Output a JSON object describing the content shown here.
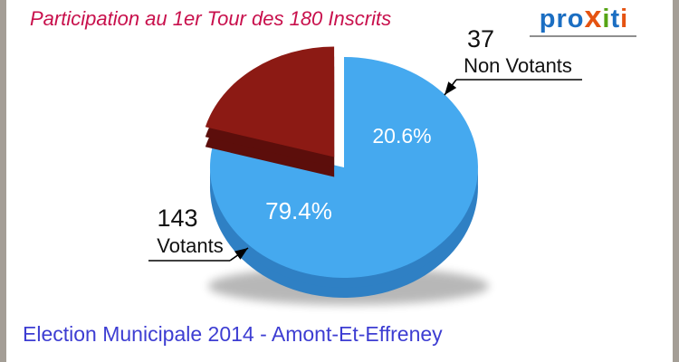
{
  "title": "Participation au 1er Tour des 180 Inscrits",
  "footer": "Election Municipale 2014 - Amont-Et-Effreney",
  "logo": {
    "text": "proxiti",
    "letters": [
      {
        "ch": "p",
        "color": "#1b6ec2"
      },
      {
        "ch": "r",
        "color": "#1b6ec2"
      },
      {
        "ch": "o",
        "color": "#1b6ec2"
      },
      {
        "ch": "x",
        "color": "#e55311",
        "big": true
      },
      {
        "ch": "i",
        "color": "#56a414"
      },
      {
        "ch": "t",
        "color": "#1b6ec2"
      },
      {
        "ch": "i",
        "color": "#e55311"
      }
    ],
    "underline_color": "#8f8f8f"
  },
  "chart_data": {
    "type": "pie",
    "title": "Participation au 1er Tour des 180 Inscrits",
    "total_inscrits": 180,
    "start_angle_deg": 90,
    "direction": "clockwise",
    "legend_position": "callouts",
    "slices": [
      {
        "label": "Votants",
        "count": 143,
        "percent": 79.4,
        "percent_label": "79.4%",
        "color": "#45a9ef",
        "side_color": "#2f80c4",
        "exploded": false
      },
      {
        "label": "Non Votants",
        "count": 37,
        "percent": 20.6,
        "percent_label": "20.6%",
        "color": "#8c1a14",
        "side_color": "#5c0e0b",
        "exploded": true
      }
    ]
  },
  "colors": {
    "title": "#c8104c",
    "footer": "#3d3dd2",
    "background_frame": "#a49e96",
    "card": "#ffffff"
  }
}
